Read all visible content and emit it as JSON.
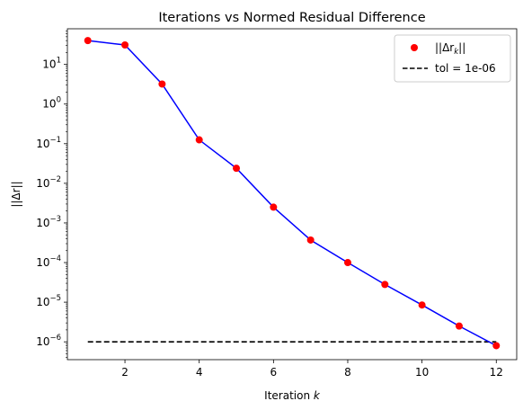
{
  "chart_data": {
    "type": "line",
    "title": "Iterations vs Normed Residual Difference",
    "xlabel": "Iteration",
    "xlabel_var": "k",
    "ylabel": "||Δr||",
    "yscale": "log",
    "xlim": [
      0.45,
      12.55
    ],
    "ylim_log10": [
      -6.45,
      1.9
    ],
    "x_ticks": [
      2,
      4,
      6,
      8,
      10,
      12
    ],
    "y_ticks_exp": [
      -6,
      -5,
      -4,
      -3,
      -2,
      -1,
      0,
      1
    ],
    "y_tick_base": "10",
    "grid": false,
    "legend_position": "upper right",
    "series": [
      {
        "name": "||Δr_k||",
        "legend_label": "||Δr",
        "legend_sub": "k",
        "legend_suffix": "||",
        "marker_color": "#ff0000",
        "line_color": "#0000ff",
        "x": [
          1,
          2,
          3,
          4,
          5,
          6,
          7,
          8,
          9,
          10,
          11,
          12
        ],
        "y": [
          40,
          31,
          3.2,
          0.125,
          0.024,
          0.0025,
          0.00037,
          0.0001,
          2.8e-05,
          8.5e-06,
          2.5e-06,
          8e-07
        ]
      },
      {
        "name": "tol = 1e-06",
        "line_color": "#000000",
        "line_style": "dashed",
        "x": [
          1,
          12
        ],
        "y": [
          1e-06,
          1e-06
        ]
      }
    ]
  }
}
